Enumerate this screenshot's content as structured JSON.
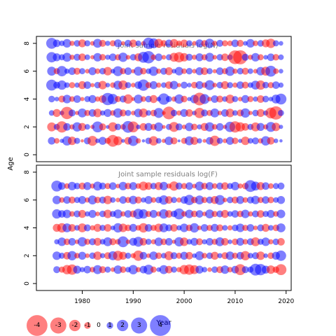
{
  "chart_data": [
    {
      "type": "scatter",
      "title": "Joint sample residuals log(N)",
      "ylabel": "Age",
      "xlim": [
        1971,
        2021
      ],
      "ylim": [
        -0.5,
        8.5
      ],
      "x_ticks": [],
      "y_ticks": [
        0,
        2,
        4,
        6,
        8
      ],
      "grid": false,
      "ages": [
        1,
        2,
        3,
        4,
        5,
        6,
        7,
        8
      ],
      "year_start": 1974,
      "year_end": 2019,
      "residuals": [
        [
          1.2,
          -0.8,
          0.5,
          1.6,
          -1.4,
          0.9,
          -0.3,
          1.1,
          -1.7,
          0.6,
          1.3,
          -0.9,
          -2.1,
          -1.5,
          0.4,
          -1.2,
          1.8,
          -0.7,
          0.3,
          1.0,
          -1.6,
          0.8,
          -0.5,
          1.4,
          -1.1,
          0.2,
          -0.9,
          1.5,
          -1.3,
          0.7,
          -0.4,
          1.2,
          -1.8,
          0.9,
          -0.6,
          1.3,
          -1.0,
          0.5,
          -1.4,
          0.8,
          1.1,
          -0.7,
          1.6,
          -1.2,
          0.6,
          0.3
        ],
        [
          -1.5,
          0.9,
          -2.0,
          1.2,
          -0.7,
          1.6,
          -1.3,
          0.8,
          -0.5,
          1.9,
          -1.1,
          0.4,
          -1.6,
          1.0,
          -0.8,
          2.1,
          -1.9,
          0.6,
          -1.2,
          1.3,
          -0.9,
          1.5,
          -0.4,
          0.9,
          -1.7,
          1.1,
          -0.6,
          1.4,
          -1.0,
          0.7,
          -1.3,
          1.6,
          -0.8,
          1.2,
          -0.5,
          1.8,
          -2.0,
          -1.6,
          -1.2,
          0.9,
          -1.5,
          1.3,
          -0.7,
          1.7,
          -1.4,
          0.5
        ],
        [
          0.8,
          -1.3,
          0.6,
          -2.2,
          1.1,
          -0.5,
          1.5,
          -0.9,
          1.2,
          -1.4,
          0.7,
          1.3,
          -0.8,
          1.6,
          -1.1,
          0.9,
          -0.6,
          1.4,
          -1.5,
          0.8,
          -1.0,
          1.7,
          -0.4,
          -2.3,
          1.0,
          -0.7,
          1.3,
          -1.2,
          0.6,
          -1.8,
          1.1,
          -0.9,
          1.5,
          -0.6,
          1.2,
          -1.4,
          0.8,
          -1.1,
          1.6,
          -0.5,
          1.0,
          -1.3,
          0.7,
          -1.9,
          -2.4,
          0.9
        ],
        [
          1.0,
          0.6,
          -1.1,
          1.4,
          -0.8,
          1.2,
          -0.5,
          0.9,
          1.3,
          -0.7,
          -1.2,
          2.2,
          1.8,
          -0.9,
          1.1,
          -1.6,
          -0.4,
          1.5,
          -0.8,
          1.0,
          -1.3,
          0.6,
          2.0,
          0.9,
          -0.7,
          1.6,
          -1.0,
          0.5,
          1.4,
          -2.3,
          1.7,
          -0.6,
          1.2,
          -1.1,
          0.8,
          -1.5,
          0.9,
          -0.6,
          1.3,
          -0.9,
          0.7,
          -1.2,
          1.0,
          0.6,
          1.5,
          1.9
        ],
        [
          1.9,
          1.1,
          1.6,
          0.8,
          -0.9,
          0.7,
          -1.3,
          1.2,
          -0.5,
          1.0,
          -1.4,
          0.6,
          -0.8,
          1.5,
          -1.6,
          0.9,
          -0.6,
          1.2,
          2.0,
          -0.9,
          1.3,
          -0.7,
          0.8,
          -1.2,
          1.4,
          -0.5,
          1.1,
          0.6,
          -1.0,
          1.3,
          -0.8,
          1.7,
          -0.6,
          1.0,
          -1.3,
          0.9,
          -0.7,
          1.2,
          -1.1,
          0.8,
          1.5,
          -1.6,
          1.0,
          -0.9,
          1.2,
          0.7
        ],
        [
          1.5,
          -0.9,
          1.8,
          0.7,
          1.2,
          -1.1,
          0.9,
          -0.6,
          1.3,
          -0.8,
          1.0,
          -1.4,
          0.6,
          1.7,
          -0.9,
          1.2,
          -0.5,
          1.5,
          -1.0,
          0.8,
          1.6,
          -0.7,
          1.1,
          -1.3,
          0.6,
          1.4,
          -0.8,
          1.0,
          -0.6,
          1.3,
          -1.2,
          0.9,
          -0.5,
          1.2,
          -0.9,
          1.6,
          -0.7,
          1.0,
          -1.1,
          0.8,
          -0.6,
          1.4,
          -1.5,
          1.9,
          -0.8,
          0.6
        ],
        [
          1.8,
          1.3,
          0.9,
          1.5,
          -0.7,
          1.1,
          -1.2,
          0.8,
          -0.5,
          1.4,
          -1.0,
          0.7,
          1.2,
          -0.9,
          1.6,
          -0.6,
          1.0,
          -1.3,
          1.9,
          2.2,
          -0.8,
          1.2,
          -0.6,
          0.9,
          -1.5,
          -1.8,
          -1.4,
          1.1,
          -0.7,
          1.3,
          -0.9,
          1.5,
          -0.6,
          1.0,
          -1.2,
          0.8,
          -2.5,
          -2.6,
          1.1,
          -0.7,
          1.4,
          -0.9,
          0.6,
          1.2,
          -1.0,
          0.8
        ],
        [
          1.9,
          1.2,
          0.8,
          1.4,
          -0.7,
          1.0,
          -1.3,
          0.9,
          -0.6,
          1.5,
          -1.1,
          0.7,
          -0.9,
          1.3,
          -0.5,
          1.1,
          -1.2,
          0.8,
          -0.6,
          2.0,
          1.7,
          -1.5,
          -1.0,
          1.2,
          -1.4,
          -0.8,
          -1.2,
          0.9,
          -0.6,
          1.3,
          -1.0,
          1.6,
          -0.7,
          1.1,
          -0.9,
          -0.8,
          1.2,
          -1.1,
          0.6,
          1.4,
          -0.8,
          1.0,
          -1.3,
          -1.6,
          0.9,
          0.6
        ]
      ]
    },
    {
      "type": "scatter",
      "title": "Joint sample residuals log(F)",
      "xlabel": "Year",
      "ylabel": "Age",
      "xlim": [
        1971,
        2021
      ],
      "ylim": [
        -0.5,
        8.5
      ],
      "x_ticks": [
        1980,
        1990,
        2000,
        2010,
        2020
      ],
      "y_ticks": [
        0,
        2,
        4,
        6,
        8
      ],
      "grid": false,
      "ages": [
        1,
        2,
        3,
        4,
        5,
        6,
        7
      ],
      "year_start": 1975,
      "year_end": 2019,
      "residuals": [
        [
          1.1,
          -0.9,
          -1.6,
          -1.8,
          1.3,
          0.7,
          1.2,
          -0.8,
          1.5,
          -1.1,
          0.9,
          -0.6,
          1.4,
          -1.0,
          0.8,
          1.6,
          -0.7,
          1.2,
          1.7,
          -0.9,
          0.6,
          1.5,
          -1.2,
          0.9,
          -0.7,
          -1.6,
          -1.8,
          -1.5,
          1.3,
          0.8,
          -0.6,
          1.0,
          -1.1,
          1.4,
          -0.8,
          1.2,
          -1.9,
          1.1,
          0.9,
          2.1,
          2.0,
          1.3,
          -1.4,
          -1.0,
          -1.9
        ],
        [
          1.4,
          0.9,
          -1.2,
          1.6,
          -0.8,
          1.3,
          -0.6,
          1.0,
          -1.4,
          0.7,
          -1.1,
          1.5,
          -1.7,
          -1.3,
          0.9,
          -0.7,
          -1.8,
          1.2,
          -0.6,
          1.4,
          -1.0,
          0.8,
          -1.5,
          1.1,
          -0.9,
          1.3,
          -1.2,
          0.6,
          1.5,
          -0.8,
          1.0,
          -1.3,
          0.7,
          -1.1,
          1.4,
          -0.9,
          1.2,
          -1.6,
          0.8,
          1.1,
          -1.4,
          0.6,
          -1.0,
          1.3,
          1.8
        ],
        [
          0.7,
          1.4,
          -1.0,
          1.2,
          -0.6,
          1.6,
          -0.9,
          1.1,
          -1.3,
          0.8,
          1.5,
          -1.1,
          -0.8,
          1.9,
          -0.6,
          1.3,
          1.7,
          -1.2,
          0.9,
          -0.7,
          1.4,
          -1.0,
          1.2,
          -0.5,
          1.6,
          -1.4,
          0.8,
          1.3,
          -1.1,
          0.7,
          1.2,
          -0.9,
          1.5,
          -1.2,
          0.6,
          -1.0,
          1.3,
          -0.8,
          1.1,
          -1.5,
          0.9,
          1.4,
          -0.7,
          1.0,
          -1.2
        ],
        [
          -1.3,
          -1.6,
          1.5,
          -1.2,
          0.8,
          -1.5,
          1.1,
          -0.7,
          -1.3,
          0.9,
          -1.2,
          0.6,
          1.6,
          -1.4,
          -1.0,
          1.3,
          -0.8,
          -1.6,
          1.2,
          -0.9,
          -1.4,
          1.5,
          1.1,
          -1.2,
          0.7,
          1.4,
          -1.0,
          1.6,
          -0.6,
          1.2,
          -0.9,
          1.3,
          -1.1,
          0.8,
          -0.7,
          1.0,
          1.4,
          -0.9,
          1.2,
          -0.6,
          1.1,
          -1.3,
          0.8,
          -1.0,
          1.5
        ],
        [
          1.6,
          1.2,
          1.4,
          -0.8,
          1.1,
          -1.3,
          0.7,
          1.3,
          -0.6,
          1.0,
          -1.4,
          0.9,
          1.5,
          -0.7,
          1.2,
          -1.1,
          1.8,
          1.6,
          -0.9,
          1.3,
          -0.7,
          1.6,
          -1.2,
          1.0,
          1.9,
          -0.8,
          1.4,
          -1.0,
          1.2,
          -0.6,
          1.5,
          -0.9,
          1.1,
          -1.3,
          0.8,
          1.2,
          -1.0,
          1.4,
          -0.7,
          1.1,
          -1.2,
          0.9,
          1.3,
          -0.8,
          1.4
        ],
        [
          1.4,
          -0.8,
          1.2,
          -1.1,
          0.9,
          1.3,
          -0.7,
          1.5,
          -1.0,
          1.1,
          -1.4,
          0.8,
          -0.6,
          1.2,
          -0.9,
          1.4,
          -1.1,
          0.7,
          1.3,
          -0.8,
          1.0,
          1.6,
          -1.2,
          0.9,
          -0.7,
          1.2,
          1.8,
          -1.0,
          1.5,
          -0.9,
          1.1,
          -1.3,
          1.7,
          -0.6,
          1.0,
          -1.1,
          1.3,
          -0.8,
          1.1,
          1.4,
          -0.9,
          1.2,
          -1.0,
          0.8,
          1.3
        ],
        [
          1.9,
          1.2,
          -0.8,
          1.4,
          1.0,
          -1.1,
          1.3,
          -0.7,
          1.5,
          1.1,
          -0.9,
          1.2,
          -0.6,
          1.4,
          -1.0,
          1.3,
          -0.8,
          -1.5,
          -1.2,
          1.0,
          -1.3,
          1.4,
          -0.7,
          -1.6,
          1.1,
          -0.9,
          1.2,
          -0.6,
          1.5,
          -1.0,
          1.3,
          -0.8,
          1.1,
          -1.2,
          0.9,
          1.4,
          -0.7,
          -1.0,
          2.1,
          1.5,
          -1.3,
          1.2,
          -0.8,
          0.9,
          1.1
        ]
      ]
    }
  ],
  "legend": {
    "values": [
      -4,
      -3,
      -2,
      -1,
      0,
      1,
      2,
      3,
      4
    ],
    "labels": [
      "-4",
      "-3",
      "-2",
      "-1",
      "0",
      "1",
      "2",
      "3",
      "4"
    ]
  },
  "colors": {
    "negative": "#ff0000",
    "positive": "#0000ff",
    "title_text": "#808080",
    "axis": "#000000"
  }
}
